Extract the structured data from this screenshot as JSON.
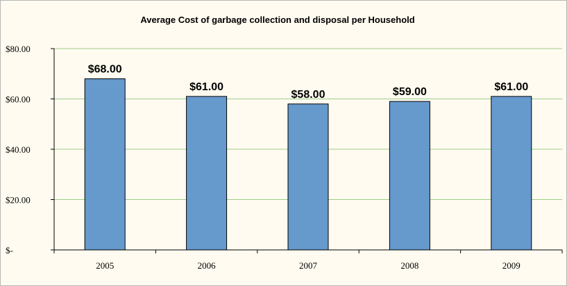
{
  "colors": {
    "background": "#fffbf0",
    "bar_fill": "#6699cc",
    "bar_stroke": "#000000",
    "gridline": "#9ccc88",
    "axis": "#000000"
  },
  "chart_data": {
    "type": "bar",
    "title": "Average Cost of garbage collection and disposal per Household",
    "xlabel": "",
    "ylabel": "",
    "categories": [
      "2005",
      "2006",
      "2007",
      "2008",
      "2009"
    ],
    "values": [
      68,
      61,
      58,
      59,
      61
    ],
    "data_labels": [
      "$68.00",
      "$61.00",
      "$58.00",
      "$59.00",
      "$61.00"
    ],
    "y_ticks": [
      0,
      20,
      40,
      60,
      80
    ],
    "y_tick_labels": [
      "$-",
      "$20.00",
      "$40.00",
      "$60.00",
      "$80.00"
    ],
    "ylim": [
      0,
      80
    ],
    "grid": true,
    "legend": "none"
  }
}
